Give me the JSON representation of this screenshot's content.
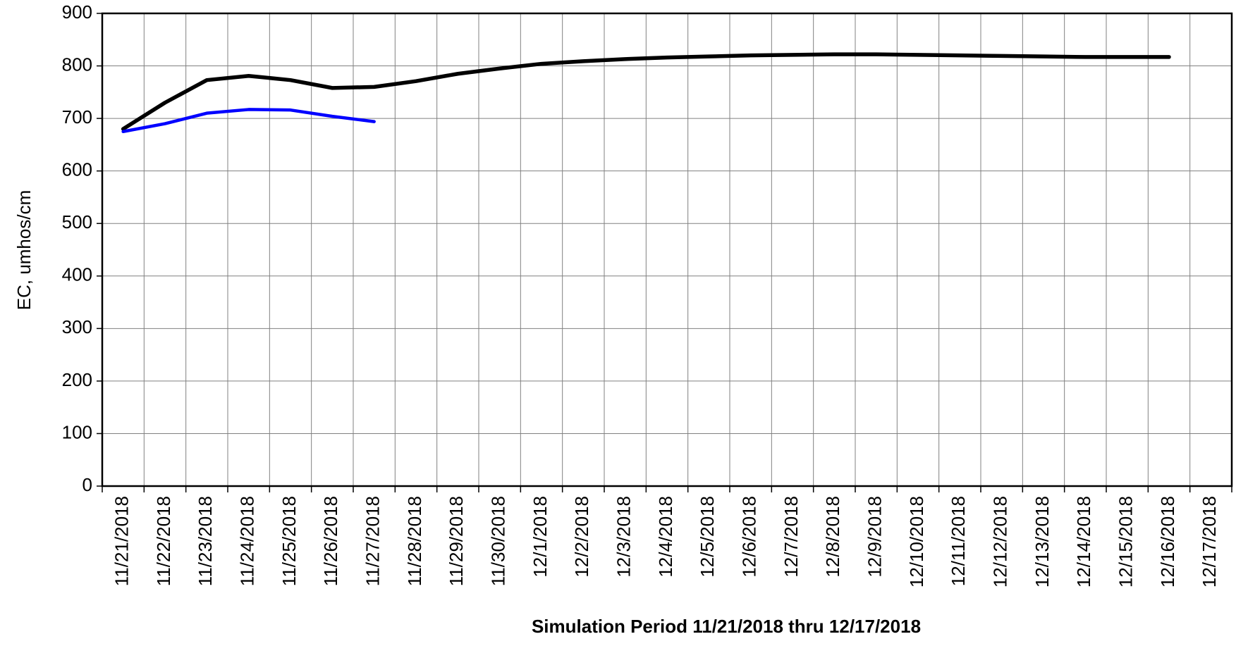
{
  "chart_data": {
    "type": "line",
    "y_label": "EC, umhos/cm",
    "x_label": "Simulation Period 11/21/2018 thru 12/17/2018",
    "categories": [
      "11/21/2018",
      "11/22/2018",
      "11/23/2018",
      "11/24/2018",
      "11/25/2018",
      "11/26/2018",
      "11/27/2018",
      "11/28/2018",
      "11/29/2018",
      "11/30/2018",
      "12/1/2018",
      "12/2/2018",
      "12/3/2018",
      "12/4/2018",
      "12/5/2018",
      "12/6/2018",
      "12/7/2018",
      "12/8/2018",
      "12/9/2018",
      "12/10/2018",
      "12/11/2018",
      "12/12/2018",
      "12/13/2018",
      "12/14/2018",
      "12/15/2018",
      "12/16/2018",
      "12/17/2018"
    ],
    "series": [
      {
        "color": "#000000",
        "values": [
          680,
          730,
          773,
          781,
          773,
          758,
          760,
          771,
          785,
          795,
          804,
          809,
          813,
          816,
          818,
          820,
          821,
          822,
          822,
          821,
          820,
          819,
          818,
          817,
          817,
          817,
          null
        ]
      },
      {
        "color": "#0000ff",
        "values": [
          675,
          690,
          710,
          717,
          716,
          704,
          694,
          null,
          null,
          null,
          null,
          null,
          null,
          null,
          null,
          null,
          null,
          null,
          null,
          null,
          null,
          null,
          null,
          null,
          null,
          null,
          null
        ]
      }
    ],
    "ylim": [
      0,
      900
    ],
    "yticks": [
      0,
      100,
      200,
      300,
      400,
      500,
      600,
      700,
      800,
      900
    ],
    "grid": true
  }
}
